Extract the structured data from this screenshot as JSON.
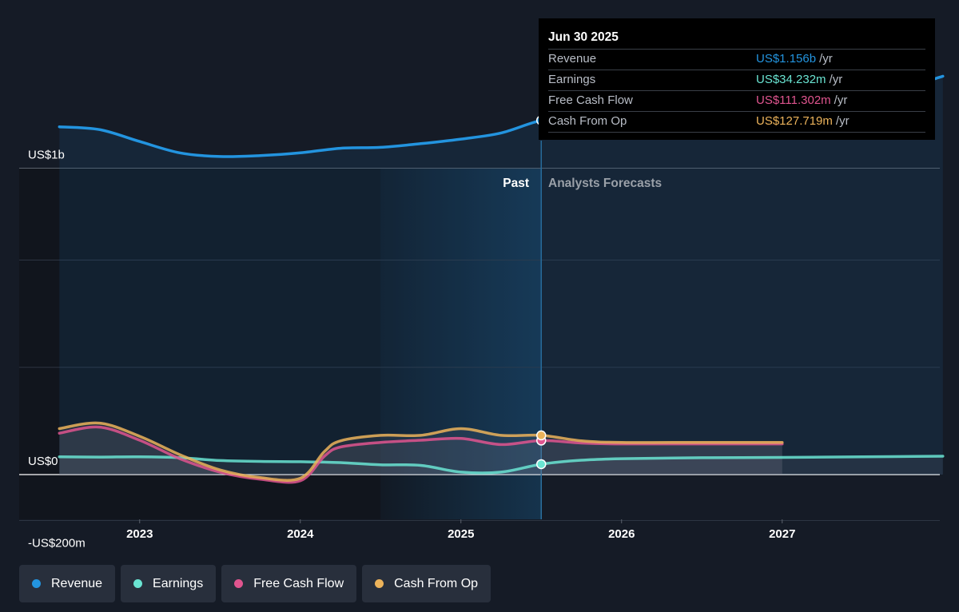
{
  "colors": {
    "revenue": "#2394df",
    "earnings": "#6ae4d2",
    "free_cash_flow": "#e0558f",
    "cash_from_op": "#ecb35b",
    "background": "#151b26"
  },
  "tooltip": {
    "date": "Jun 30 2025",
    "rows": [
      {
        "label": "Revenue",
        "value": "US$1.156b",
        "unit": "/yr"
      },
      {
        "label": "Earnings",
        "value": "US$34.232m",
        "unit": "/yr"
      },
      {
        "label": "Free Cash Flow",
        "value": "US$111.302m",
        "unit": "/yr"
      },
      {
        "label": "Cash From Op",
        "value": "US$127.719m",
        "unit": "/yr"
      }
    ]
  },
  "legend": {
    "items": [
      {
        "label": "Revenue",
        "icon": "revenue-dot-icon"
      },
      {
        "label": "Earnings",
        "icon": "earnings-dot-icon"
      },
      {
        "label": "Free Cash Flow",
        "icon": "free-cash-flow-dot-icon"
      },
      {
        "label": "Cash From Op",
        "icon": "cash-from-op-dot-icon"
      }
    ]
  },
  "chart_data": {
    "type": "line",
    "title": "",
    "xlabel": "",
    "ylabel": "",
    "x_domain": [
      2022.25,
      2028.0
    ],
    "ylim": [
      -300,
      1400
    ],
    "y_tick_labels": [
      {
        "value": 1000,
        "label": "US$1b"
      },
      {
        "value": 0,
        "label": "US$0"
      },
      {
        "value": -200,
        "label": "-US$200m"
      }
    ],
    "y_gridlines": [
      1000,
      700,
      350,
      0,
      -150
    ],
    "x_ticks": [
      {
        "value": 2023,
        "label": "2023"
      },
      {
        "value": 2024,
        "label": "2024"
      },
      {
        "value": 2025,
        "label": "2025"
      },
      {
        "value": 2026,
        "label": "2026"
      },
      {
        "value": 2027,
        "label": "2027"
      }
    ],
    "divider_x": 2025.5,
    "past_highlight_start": 2024.5,
    "past_label": "Past",
    "forecast_label": "Analysts Forecasts",
    "series": [
      {
        "name": "Revenue",
        "key": "revenue",
        "x": [
          2022.5,
          2022.75,
          2023.0,
          2023.25,
          2023.5,
          2023.75,
          2024.0,
          2024.25,
          2024.5,
          2024.75,
          2025.0,
          2025.25,
          2025.5,
          2025.75,
          2026.0,
          2026.5,
          2027.0,
          2027.5,
          2028.0
        ],
        "y": [
          1135,
          1126,
          1087,
          1050,
          1038,
          1041,
          1050,
          1065,
          1068,
          1080,
          1095,
          1115,
          1156,
          1172,
          1176,
          1178,
          1182,
          1223,
          1300
        ]
      },
      {
        "name": "Earnings",
        "key": "earnings",
        "x": [
          2022.5,
          2022.75,
          2023.0,
          2023.25,
          2023.5,
          2023.75,
          2024.0,
          2024.25,
          2024.5,
          2024.75,
          2025.0,
          2025.25,
          2025.5,
          2025.75,
          2026.0,
          2026.5,
          2027.0,
          2027.5,
          2028.0
        ],
        "y": [
          58,
          57,
          58,
          55,
          46,
          43,
          42,
          39,
          32,
          30,
          8,
          8,
          34,
          47,
          52,
          55,
          56,
          58,
          60
        ]
      },
      {
        "name": "Free Cash Flow",
        "key": "free_cash_flow",
        "x": [
          2022.5,
          2022.75,
          2023.0,
          2023.25,
          2023.5,
          2023.75,
          2024.0,
          2024.15,
          2024.25,
          2024.5,
          2024.75,
          2025.0,
          2025.25,
          2025.5,
          2025.75,
          2026.0,
          2026.5,
          2027.0
        ],
        "y": [
          135,
          155,
          112,
          52,
          8,
          -15,
          -20,
          60,
          90,
          105,
          112,
          118,
          98,
          111,
          103,
          100,
          100,
          100
        ]
      },
      {
        "name": "Cash From Op",
        "key": "cash_from_op",
        "x": [
          2022.5,
          2022.75,
          2023.0,
          2023.25,
          2023.5,
          2023.75,
          2024.0,
          2024.15,
          2024.25,
          2024.5,
          2024.75,
          2025.0,
          2025.25,
          2025.5,
          2025.75,
          2026.0,
          2026.5,
          2027.0
        ],
        "y": [
          150,
          168,
          125,
          65,
          15,
          -10,
          -12,
          75,
          110,
          128,
          128,
          150,
          128,
          128,
          110,
          105,
          105,
          105
        ]
      }
    ]
  }
}
